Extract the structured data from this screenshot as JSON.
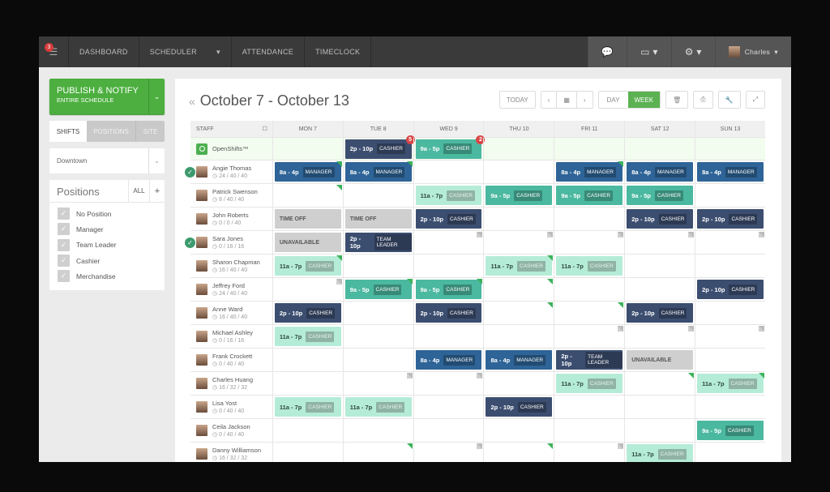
{
  "nav": {
    "notif_count": "3",
    "items": [
      "DASHBOARD",
      "SCHEDULER",
      "ATTENDANCE",
      "TIMECLOCK"
    ],
    "scheduler_caret": "▾",
    "user": "Charles"
  },
  "sidebar": {
    "publish": "PUBLISH & NOTIFY",
    "publish_sub": "ENTIRE SCHEDULE",
    "tabs": [
      "SHIFTS",
      "POSITIONS",
      "SITE"
    ],
    "location": "Downtown",
    "positions_title": "Positions",
    "all": "ALL",
    "add": "+",
    "positions": [
      "No Position",
      "Manager",
      "Team Leader",
      "Cashier",
      "Merchandise"
    ]
  },
  "header": {
    "title": "October 7 - October 13",
    "today": "TODAY",
    "day": "DAY",
    "week": "WEEK"
  },
  "colors": {
    "navy": "#3c4e70",
    "blue": "#2e6497",
    "teal": "#4bb8a0",
    "mint": "#b5ecd7",
    "gray": "#cfcfcf",
    "accent": "#4caf3f"
  },
  "grid": {
    "staff_header": "STAFF",
    "days": [
      "MON 7",
      "TUE 8",
      "WED 9",
      "THU 10",
      "FRI 11",
      "SAT 12",
      "SUN 13"
    ],
    "open": {
      "name": "OpenShifts™",
      "cells": [
        null,
        {
          "time": "2p - 10p",
          "pos": "CASHIER",
          "type": "navy",
          "badge": "5"
        },
        {
          "time": "9a - 5p",
          "pos": "CASHIER",
          "type": "teal",
          "badge": "2"
        },
        null,
        null,
        null,
        null
      ]
    },
    "rows": [
      {
        "name": "Angie Thomas",
        "hours": "24 / 40 / 40",
        "checked": true,
        "cells": [
          {
            "time": "8a - 4p",
            "pos": "MANAGER",
            "type": "blue",
            "flag": "green"
          },
          {
            "time": "8a - 4p",
            "pos": "MANAGER",
            "type": "blue",
            "flag": "green"
          },
          null,
          null,
          {
            "time": "8a - 4p",
            "pos": "MANAGER",
            "type": "blue",
            "flag": "green"
          },
          {
            "time": "8a - 4p",
            "pos": "MANAGER",
            "type": "blue"
          },
          {
            "time": "8a - 4p",
            "pos": "MANAGER",
            "type": "blue"
          }
        ]
      },
      {
        "name": "Patrick Swenson",
        "hours": "8 / 40 / 40",
        "cells": [
          {
            "flag": "green"
          },
          null,
          {
            "time": "11a - 7p",
            "pos": "CASHIER",
            "type": "mint"
          },
          {
            "time": "9a - 5p",
            "pos": "CASHIER",
            "type": "teal"
          },
          {
            "time": "9a - 5p",
            "pos": "CASHIER",
            "type": "teal"
          },
          {
            "time": "9a - 5p",
            "pos": "CASHIER",
            "type": "teal"
          },
          null
        ]
      },
      {
        "name": "John Roberts",
        "hours": "0 / 0 / 40",
        "cells": [
          {
            "time": "TIME OFF",
            "type": "gray"
          },
          {
            "time": "TIME OFF",
            "type": "gray"
          },
          {
            "time": "2p - 10p",
            "pos": "CASHIER",
            "type": "navy"
          },
          null,
          null,
          {
            "time": "2p - 10p",
            "pos": "CASHIER",
            "type": "navy"
          },
          {
            "time": "2p - 10p",
            "pos": "CASHIER",
            "type": "navy"
          }
        ]
      },
      {
        "name": "Sara Jones",
        "hours": "0 / 16 / 16",
        "checked": true,
        "cells": [
          {
            "time": "UNAVAILABLE",
            "type": "gray"
          },
          {
            "time": "2p - 10p",
            "pos": "TEAM LEADER",
            "type": "navy"
          },
          {
            "flag": "gray"
          },
          {
            "flag": "gray"
          },
          {
            "flag": "gray"
          },
          {
            "flag": "gray"
          },
          {
            "flag": "gray"
          }
        ]
      },
      {
        "name": "Sharon Chapman",
        "hours": "16 / 40 / 40",
        "cells": [
          {
            "time": "11a - 7p",
            "pos": "CASHIER",
            "type": "mint",
            "flag": "green"
          },
          null,
          null,
          {
            "time": "11a - 7p",
            "pos": "CASHIER",
            "type": "mint",
            "flag": "green"
          },
          {
            "time": "11a - 7p",
            "pos": "CASHIER",
            "type": "mint"
          },
          null,
          null
        ]
      },
      {
        "name": "Jeffrey Ford",
        "hours": "24 / 40 / 40",
        "cells": [
          {
            "flag": "gray"
          },
          {
            "time": "9a - 5p",
            "pos": "CASHIER",
            "type": "teal",
            "flag": "green"
          },
          {
            "time": "9a - 5p",
            "pos": "CASHIER",
            "type": "teal",
            "flag": "green"
          },
          {
            "flag": "green"
          },
          null,
          null,
          {
            "time": "2p - 10p",
            "pos": "CASHIER",
            "type": "navy"
          }
        ]
      },
      {
        "name": "Anne Ward",
        "hours": "16 / 40 / 40",
        "cells": [
          {
            "time": "2p - 10p",
            "pos": "CASHIER",
            "type": "navy"
          },
          null,
          {
            "time": "2p - 10p",
            "pos": "CASHIER",
            "type": "navy"
          },
          {
            "flag": "green"
          },
          {
            "flag": "green"
          },
          {
            "time": "2p - 10p",
            "pos": "CASHIER",
            "type": "navy"
          },
          null
        ]
      },
      {
        "name": "Michael Ashley",
        "hours": "0 / 16 / 16",
        "cells": [
          {
            "time": "11a - 7p",
            "pos": "CASHIER",
            "type": "mint"
          },
          null,
          null,
          null,
          {
            "flag": "gray"
          },
          {
            "flag": "gray"
          },
          {
            "flag": "gray"
          }
        ]
      },
      {
        "name": "Frank Crockett",
        "hours": "0 / 40 / 40",
        "cells": [
          null,
          null,
          {
            "time": "8a - 4p",
            "pos": "MANAGER",
            "type": "blue"
          },
          {
            "time": "8a - 4p",
            "pos": "MANAGER",
            "type": "blue"
          },
          {
            "time": "2p - 10p",
            "pos": "TEAM LEADER",
            "type": "navy"
          },
          {
            "time": "UNAVAILABLE",
            "type": "gray"
          },
          null
        ]
      },
      {
        "name": "Charles Huang",
        "hours": "16 / 32 / 32",
        "cells": [
          null,
          {
            "flag": "gray"
          },
          {
            "flag": "gray"
          },
          null,
          {
            "time": "11a - 7p",
            "pos": "CASHIER",
            "type": "mint"
          },
          {
            "flag": "green"
          },
          {
            "time": "11a - 7p",
            "pos": "CASHIER",
            "type": "mint",
            "flag": "green"
          }
        ]
      },
      {
        "name": "Lisa Yost",
        "hours": "0 / 40 / 40",
        "cells": [
          {
            "time": "11a - 7p",
            "pos": "CASHIER",
            "type": "mint"
          },
          {
            "time": "11a - 7p",
            "pos": "CASHIER",
            "type": "mint"
          },
          null,
          {
            "time": "2p - 10p",
            "pos": "CASHIER",
            "type": "navy"
          },
          null,
          null,
          null
        ]
      },
      {
        "name": "Ceila Jackson",
        "hours": "0 / 40 / 40",
        "cells": [
          null,
          null,
          null,
          null,
          null,
          null,
          {
            "time": "9a - 5p",
            "pos": "CASHIER",
            "type": "teal"
          }
        ]
      },
      {
        "name": "Danny  Williamson",
        "hours": "16 / 32 / 32",
        "cells": [
          null,
          {
            "flag": "green"
          },
          {
            "flag": "gray"
          },
          {
            "flag": "green"
          },
          {
            "flag": "gray"
          },
          {
            "time": "11a - 7p",
            "pos": "CASHIER",
            "type": "mint"
          },
          null
        ]
      }
    ]
  }
}
